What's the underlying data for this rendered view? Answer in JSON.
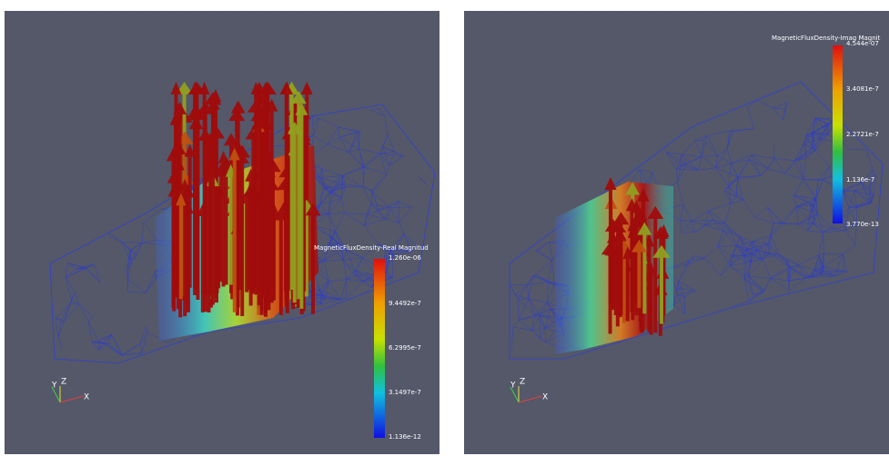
{
  "views": [
    {
      "colorbar": {
        "title": "MagneticFluxDensity-Real Magnitud",
        "labels": [
          "1.260e-06",
          "9.4492e-7",
          "6.2995e-7",
          "3.1497e-7",
          "1.136e-12"
        ]
      },
      "axes": {
        "y": "Y",
        "z": "Z",
        "x": "X"
      }
    },
    {
      "colorbar": {
        "title": "MagneticFluxDensity-Imag Magnit",
        "labels": [
          "4.544e-07",
          "3.4081e-7",
          "2.2721e-7",
          "1.136e-7",
          "3.770e-13"
        ]
      },
      "axes": {
        "y": "Y",
        "z": "Z",
        "x": "X"
      }
    }
  ]
}
